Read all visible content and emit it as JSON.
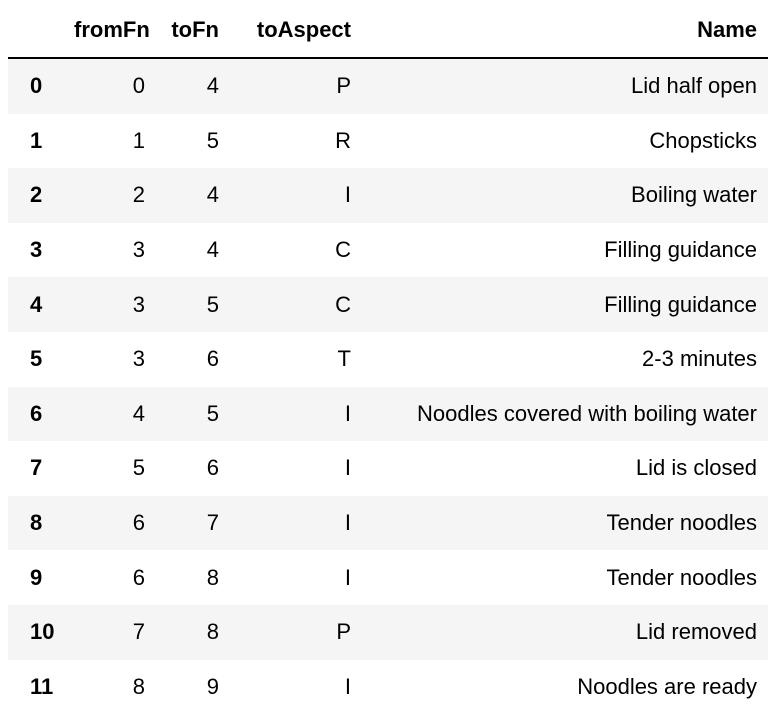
{
  "table": {
    "columns": [
      "",
      "fromFn",
      "toFn",
      "toAspect",
      "Name"
    ],
    "rows": [
      {
        "index": "0",
        "fromFn": "0",
        "toFn": "4",
        "toAspect": "P",
        "Name": "Lid half open"
      },
      {
        "index": "1",
        "fromFn": "1",
        "toFn": "5",
        "toAspect": "R",
        "Name": "Chopsticks"
      },
      {
        "index": "2",
        "fromFn": "2",
        "toFn": "4",
        "toAspect": "I",
        "Name": "Boiling water"
      },
      {
        "index": "3",
        "fromFn": "3",
        "toFn": "4",
        "toAspect": "C",
        "Name": "Filling guidance"
      },
      {
        "index": "4",
        "fromFn": "3",
        "toFn": "5",
        "toAspect": "C",
        "Name": "Filling guidance"
      },
      {
        "index": "5",
        "fromFn": "3",
        "toFn": "6",
        "toAspect": "T",
        "Name": "2-3 minutes"
      },
      {
        "index": "6",
        "fromFn": "4",
        "toFn": "5",
        "toAspect": "I",
        "Name": "Noodles covered with boiling water"
      },
      {
        "index": "7",
        "fromFn": "5",
        "toFn": "6",
        "toAspect": "I",
        "Name": "Lid is closed"
      },
      {
        "index": "8",
        "fromFn": "6",
        "toFn": "7",
        "toAspect": "I",
        "Name": "Tender noodles"
      },
      {
        "index": "9",
        "fromFn": "6",
        "toFn": "8",
        "toAspect": "I",
        "Name": "Tender noodles"
      },
      {
        "index": "10",
        "fromFn": "7",
        "toFn": "8",
        "toAspect": "P",
        "Name": "Lid removed"
      },
      {
        "index": "11",
        "fromFn": "8",
        "toFn": "9",
        "toAspect": "I",
        "Name": "Noodles are ready"
      }
    ]
  },
  "colors": {
    "stripe": "#f5f5f5",
    "background": "#ffffff",
    "text": "#000000",
    "header_rule": "#000000"
  }
}
